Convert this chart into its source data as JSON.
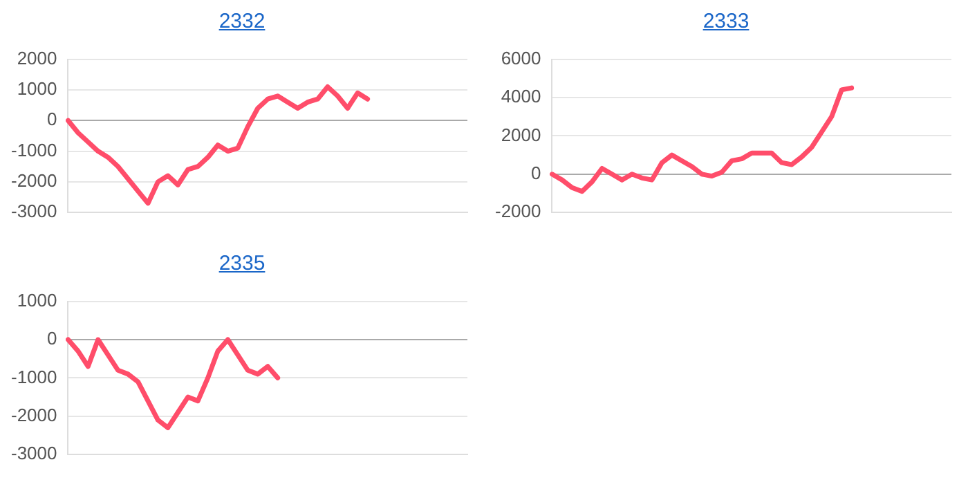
{
  "chart_data": [
    {
      "type": "line",
      "title": "2332",
      "categories": [
        null,
        null,
        null,
        null,
        null,
        null,
        null,
        null,
        null,
        null,
        null,
        null,
        null,
        null,
        null,
        null,
        null,
        null,
        null,
        null,
        null,
        null,
        null,
        null,
        null,
        null,
        null,
        null,
        null,
        null,
        null,
        null,
        null,
        null,
        null,
        null,
        null,
        null,
        null,
        null,
        null
      ],
      "series": [
        {
          "color": "#ff4d6a",
          "values": [
            0,
            -400,
            -700,
            -1000,
            -1200,
            -1500,
            -1900,
            -2300,
            -2700,
            -2000,
            -1800,
            -2100,
            -1600,
            -1500,
            -1200,
            -800,
            -1000,
            -900,
            -200,
            400,
            700,
            800,
            600,
            400,
            600,
            700,
            1100,
            800,
            400,
            900,
            700,
            null,
            null,
            null,
            null,
            null,
            null,
            null,
            null,
            null,
            null
          ]
        }
      ],
      "ylim": [
        -3000,
        2000
      ],
      "yticks": [
        -3000,
        -2000,
        -1000,
        0,
        1000,
        2000
      ],
      "grid": "y",
      "legend": false,
      "marker": "none",
      "line_style": "solid"
    },
    {
      "type": "line",
      "title": "2333",
      "categories": [
        null,
        null,
        null,
        null,
        null,
        null,
        null,
        null,
        null,
        null,
        null,
        null,
        null,
        null,
        null,
        null,
        null,
        null,
        null,
        null,
        null,
        null,
        null,
        null,
        null,
        null,
        null,
        null,
        null,
        null,
        null,
        null,
        null,
        null,
        null,
        null,
        null,
        null,
        null,
        null,
        null
      ],
      "series": [
        {
          "color": "#ff4d6a",
          "values": [
            0,
            -300,
            -700,
            -900,
            -400,
            300,
            0,
            -300,
            0,
            -200,
            -300,
            600,
            1000,
            700,
            400,
            0,
            -100,
            100,
            700,
            800,
            1100,
            1100,
            1100,
            600,
            500,
            900,
            1400,
            2200,
            3000,
            4400,
            4500,
            null,
            null,
            null,
            null,
            null,
            null,
            null,
            null,
            null,
            null
          ]
        }
      ],
      "ylim": [
        -2000,
        6000
      ],
      "yticks": [
        -2000,
        0,
        2000,
        4000,
        6000
      ],
      "grid": "y",
      "legend": false,
      "marker": "none",
      "line_style": "solid"
    },
    {
      "type": "line",
      "title": "2335",
      "categories": [
        null,
        null,
        null,
        null,
        null,
        null,
        null,
        null,
        null,
        null,
        null,
        null,
        null,
        null,
        null,
        null,
        null,
        null,
        null,
        null,
        null,
        null,
        null,
        null,
        null,
        null,
        null,
        null,
        null,
        null,
        null,
        null,
        null,
        null,
        null,
        null,
        null,
        null,
        null,
        null,
        null
      ],
      "series": [
        {
          "color": "#ff4d6a",
          "values": [
            0,
            -300,
            -700,
            0,
            -400,
            -800,
            -900,
            -1100,
            -1600,
            -2100,
            -2300,
            -1900,
            -1500,
            -1600,
            -1000,
            -300,
            0,
            -400,
            -800,
            -900,
            -700,
            -1000,
            null,
            null,
            null,
            null,
            null,
            null,
            null,
            null,
            null,
            null,
            null,
            null,
            null,
            null,
            null,
            null,
            null,
            null,
            null
          ]
        }
      ],
      "ylim": [
        -3000,
        1000
      ],
      "yticks": [
        -3000,
        -2000,
        -1000,
        0,
        1000
      ],
      "grid": "y",
      "legend": false,
      "marker": "none",
      "line_style": "solid"
    }
  ]
}
